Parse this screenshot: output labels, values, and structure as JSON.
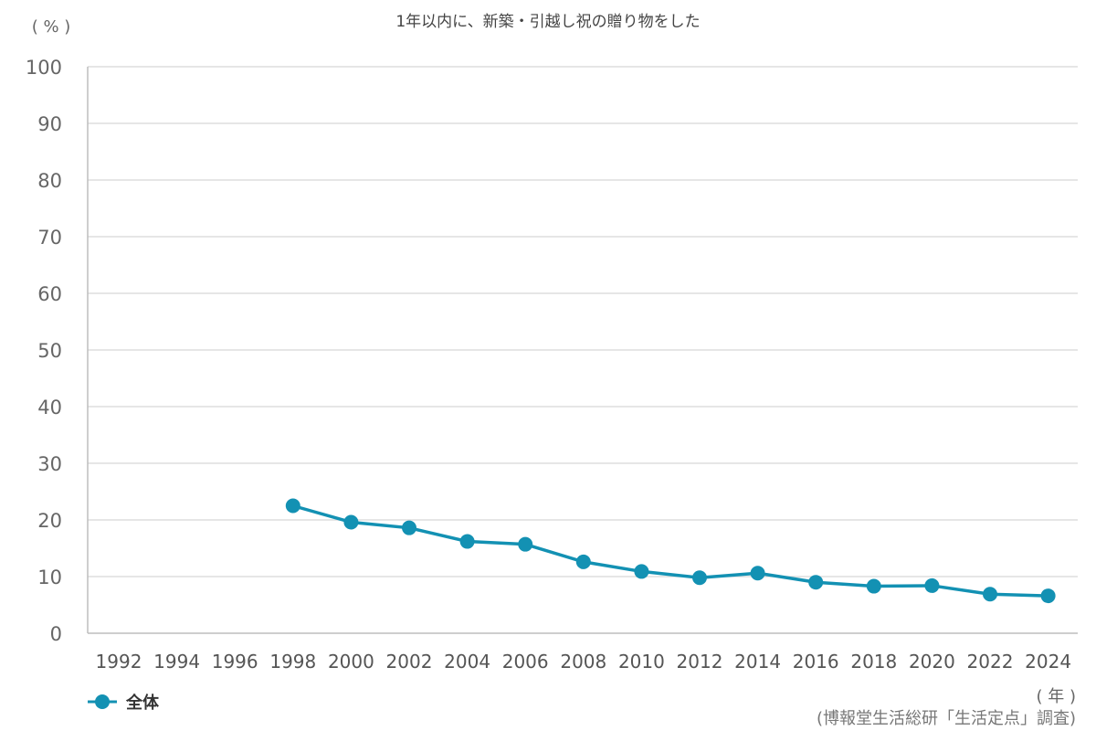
{
  "chart_data": {
    "type": "line",
    "title": "1年以内に、新築・引越し祝の贈り物をした",
    "ylabel": "( % )",
    "xlabel": "( 年 )",
    "ylim": [
      0,
      100
    ],
    "yticks": [
      0,
      10,
      20,
      30,
      40,
      50,
      60,
      70,
      80,
      90,
      100
    ],
    "categories": [
      "1992",
      "1994",
      "1996",
      "1998",
      "2000",
      "2002",
      "2004",
      "2006",
      "2008",
      "2010",
      "2012",
      "2014",
      "2016",
      "2018",
      "2020",
      "2022",
      "2024"
    ],
    "series": [
      {
        "name": "全体",
        "color": "#1391b3",
        "values": [
          null,
          null,
          null,
          22.5,
          19.6,
          18.6,
          16.2,
          15.7,
          12.6,
          10.9,
          9.8,
          10.6,
          9.0,
          8.3,
          8.4,
          6.9,
          6.6
        ]
      }
    ],
    "grid": true,
    "legend_position": "bottom-left",
    "source": "(博報堂生活総研「生活定点」調査)"
  }
}
